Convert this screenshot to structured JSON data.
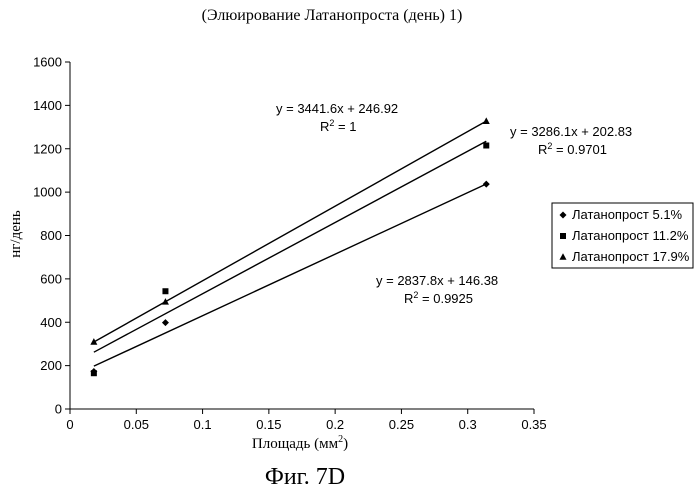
{
  "chart_data": {
    "type": "scatter",
    "title": "(Элюирование Латанопроста (день) 1)",
    "caption": "Фиг. 7D",
    "xlabel_main": "Площадь (мм",
    "xlabel_sup": "2",
    "xlabel_end": ")",
    "ylabel": "нг/день",
    "xlim": [
      0,
      0.35
    ],
    "ylim": [
      0,
      1600
    ],
    "x_ticks": [
      "0",
      "0.05",
      "0.1",
      "0.15",
      "0.2",
      "0.25",
      "0.3",
      "0.35"
    ],
    "y_ticks": [
      "0",
      "200",
      "400",
      "600",
      "800",
      "1000",
      "1200",
      "1400",
      "1600"
    ],
    "legend_position": "right",
    "series": [
      {
        "name": "Латанопрост 5.1%",
        "marker": "diamond",
        "x": [
          0.018,
          0.072,
          0.314
        ],
        "y": [
          173,
          398,
          1037
        ],
        "trend": {
          "slope": 2837.8,
          "intercept": 146.38,
          "equation": "y = 2837.8x + 146.38",
          "r2_prefix": "R",
          "r2_sup": "2",
          "r2_value": " = 0.9925"
        }
      },
      {
        "name": "Латанопрост 11.2%",
        "marker": "square",
        "x": [
          0.018,
          0.072,
          0.314
        ],
        "y": [
          165,
          543,
          1215
        ],
        "trend": {
          "slope": 3286.1,
          "intercept": 202.83,
          "equation": "y = 3286.1x + 202.83",
          "r2_prefix": "R",
          "r2_sup": "2",
          "r2_value": " = 0.9701"
        }
      },
      {
        "name": "Латанопрост 17.9%",
        "marker": "triangle",
        "x": [
          0.018,
          0.072,
          0.314
        ],
        "y": [
          309,
          494,
          1327
        ],
        "trend": {
          "slope": 3441.6,
          "intercept": 246.92,
          "equation": "y = 3441.6x + 246.92",
          "r2_prefix": "R",
          "r2_sup": "2",
          "r2_value": " = 1"
        }
      }
    ]
  }
}
